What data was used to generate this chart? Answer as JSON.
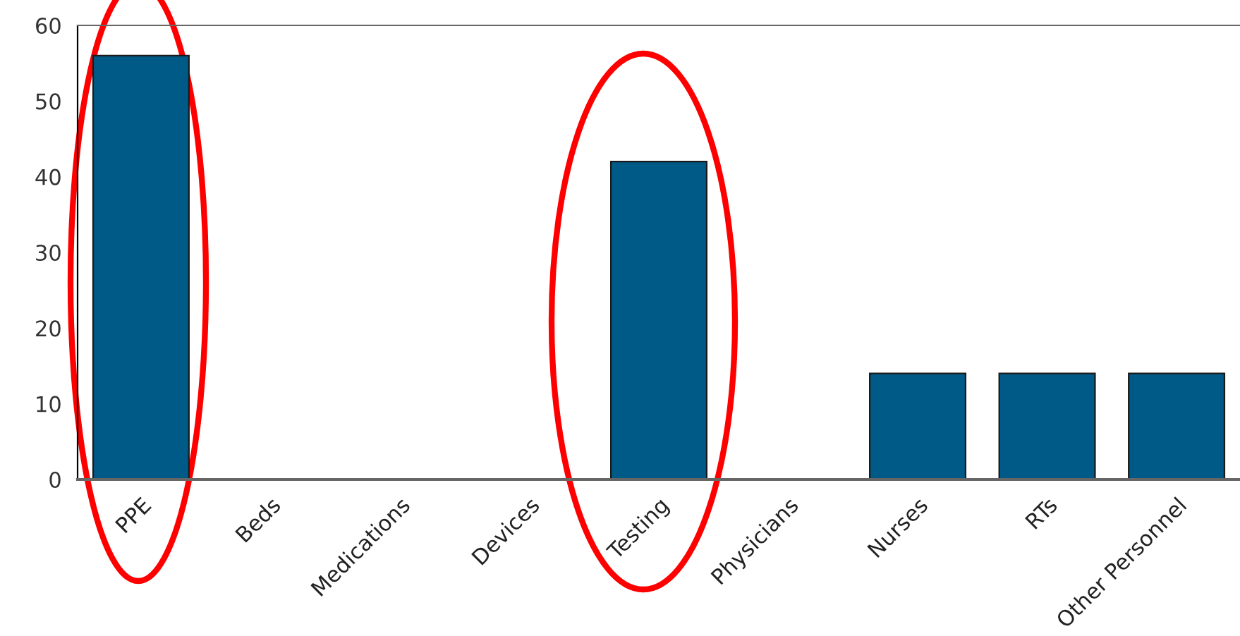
{
  "chart_data": {
    "type": "bar",
    "categories": [
      "PPE",
      "Beds",
      "Medications",
      "Devices",
      "Testing",
      "Physicians",
      "Nurses",
      "RTs",
      "Other Personnel"
    ],
    "values": [
      56,
      0,
      0,
      0,
      42,
      0,
      14,
      14,
      14
    ],
    "color": "#005a87",
    "ylim": [
      0,
      60
    ],
    "yticks": [
      0,
      10,
      20,
      30,
      40,
      50,
      60
    ],
    "grid": false
  }
}
